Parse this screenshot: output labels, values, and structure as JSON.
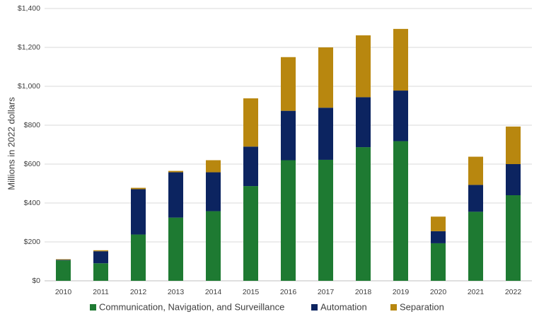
{
  "chart_data": {
    "type": "bar",
    "stacked": true,
    "title": "",
    "xlabel": "",
    "ylabel": "Millions in 2022 dollars",
    "ylim": [
      0,
      1400
    ],
    "yticks": [
      0,
      200,
      400,
      600,
      800,
      1000,
      1200,
      1400
    ],
    "ytick_labels": [
      "$0",
      "$200",
      "$400",
      "$600",
      "$800",
      "$1,000",
      "$1,200",
      "$1,400"
    ],
    "grid": true,
    "legend_position": "bottom",
    "categories": [
      "2010",
      "2011",
      "2012",
      "2013",
      "2014",
      "2015",
      "2016",
      "2017",
      "2018",
      "2019",
      "2020",
      "2021",
      "2022"
    ],
    "series": [
      {
        "name": "Communication, Navigation, and Surveillance",
        "color": "#1E7A32",
        "values": [
          105,
          90,
          238,
          325,
          358,
          487,
          620,
          622,
          687,
          718,
          193,
          355,
          440
        ]
      },
      {
        "name": "Automation",
        "color": "#0C2460",
        "values": [
          3,
          62,
          233,
          233,
          200,
          203,
          254,
          268,
          257,
          260,
          62,
          138,
          160
        ]
      },
      {
        "name": "Separation",
        "color": "#B8870F",
        "values": [
          3,
          5,
          7,
          7,
          62,
          248,
          276,
          310,
          318,
          317,
          75,
          145,
          193
        ]
      }
    ]
  }
}
